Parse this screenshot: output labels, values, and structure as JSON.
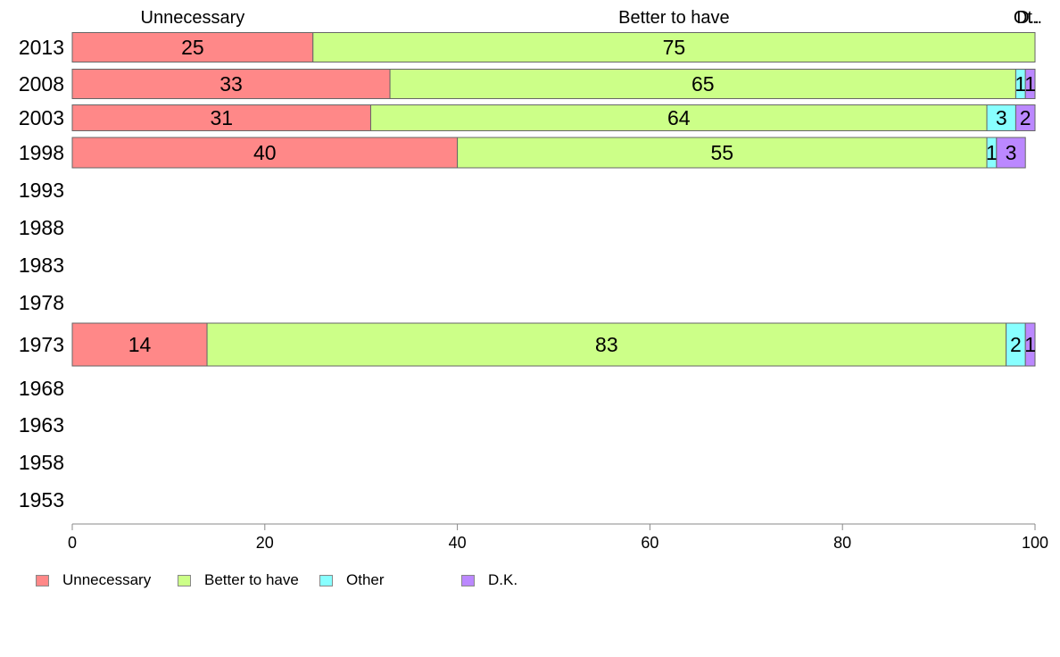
{
  "chart_data": {
    "type": "bar",
    "orientation": "horizontal",
    "stacked": true,
    "categories": [
      "2013",
      "2008",
      "2003",
      "1998",
      "1993",
      "1988",
      "1983",
      "1978",
      "1973",
      "1968",
      "1963",
      "1958",
      "1953"
    ],
    "series": [
      {
        "name": "Unnecessary",
        "values": [
          25,
          33,
          31,
          40,
          null,
          null,
          null,
          null,
          14,
          null,
          null,
          null,
          null
        ],
        "color": "#ff8888"
      },
      {
        "name": "Better to have",
        "values": [
          75,
          65,
          64,
          55,
          null,
          null,
          null,
          null,
          83,
          null,
          null,
          null,
          null
        ],
        "color": "#ccff88"
      },
      {
        "name": "Other",
        "values": [
          0,
          1,
          3,
          1,
          null,
          null,
          null,
          null,
          2,
          null,
          null,
          null,
          null
        ],
        "color": "#88ffff"
      },
      {
        "name": "D.K.",
        "values": [
          0,
          1,
          2,
          3,
          null,
          null,
          null,
          null,
          1,
          null,
          null,
          null,
          null
        ],
        "color": "#bb88ff"
      }
    ],
    "bar_labels": [
      [
        "25",
        "75",
        "",
        ""
      ],
      [
        "33",
        "65",
        "1",
        "1"
      ],
      [
        "31",
        "64",
        "3",
        "2"
      ],
      [
        "40",
        "55",
        "1",
        "3"
      ],
      [],
      [],
      [],
      [],
      [
        "14",
        "83",
        "2",
        "1"
      ],
      [],
      [],
      [],
      []
    ],
    "top_labels": [
      "Unnecessary",
      "Better to have",
      "Ot..",
      "D.."
    ],
    "xlim": [
      0,
      100
    ],
    "xticks": [
      0,
      20,
      40,
      60,
      80,
      100
    ],
    "legend_position": "bottom-left",
    "grid": false
  },
  "legend": {
    "items": [
      {
        "label": "Unnecessary",
        "color": "#ff8888"
      },
      {
        "label": "Better to have",
        "color": "#ccff88"
      },
      {
        "label": "Other",
        "color": "#88ffff"
      },
      {
        "label": "D.K.",
        "color": "#bb88ff"
      }
    ]
  }
}
